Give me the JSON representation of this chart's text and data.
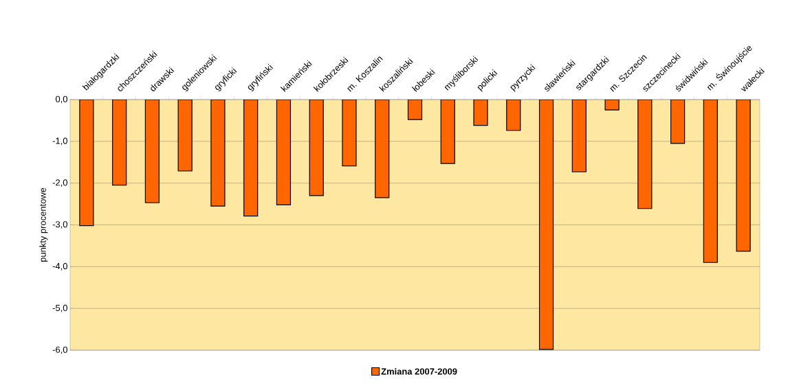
{
  "chart_data": {
    "type": "bar",
    "ylabel": "punkty procentowe",
    "categories": [
      "białogardzki",
      "choszczeński",
      "drawski",
      "goleniowski",
      "gryficki",
      "gryfiński",
      "kamieński",
      "kołobrzeski",
      "m. Koszalin",
      "koszaliński",
      "łobeski",
      "myśliborski",
      "policki",
      "pyrzycki",
      "sławieński",
      "stargardzki",
      "m. Szczecin",
      "szczecinecki",
      "świdwiński",
      "m. Świnoujście",
      "wałecki"
    ],
    "series": [
      {
        "name": "Zmiana 2007-2009",
        "color": "#ff6600",
        "values": [
          -3.02,
          -2.05,
          -2.47,
          -1.71,
          -2.55,
          -2.79,
          -2.52,
          -2.3,
          -1.59,
          -2.35,
          -0.48,
          -1.53,
          -0.62,
          -0.74,
          -5.98,
          -1.73,
          -0.25,
          -2.61,
          -1.05,
          -3.9,
          -3.63
        ]
      }
    ],
    "ylim": [
      -6,
      0
    ],
    "yticks": [
      {
        "value": 0,
        "label": "0,0"
      },
      {
        "value": -1,
        "label": "-1,0"
      },
      {
        "value": -2,
        "label": "-2,0"
      },
      {
        "value": -3,
        "label": "-3,0"
      },
      {
        "value": -4,
        "label": "-4,0"
      },
      {
        "value": -5,
        "label": "-5,0"
      },
      {
        "value": -6,
        "label": "-6,0"
      }
    ],
    "grid": "y",
    "legend": "bottom"
  }
}
